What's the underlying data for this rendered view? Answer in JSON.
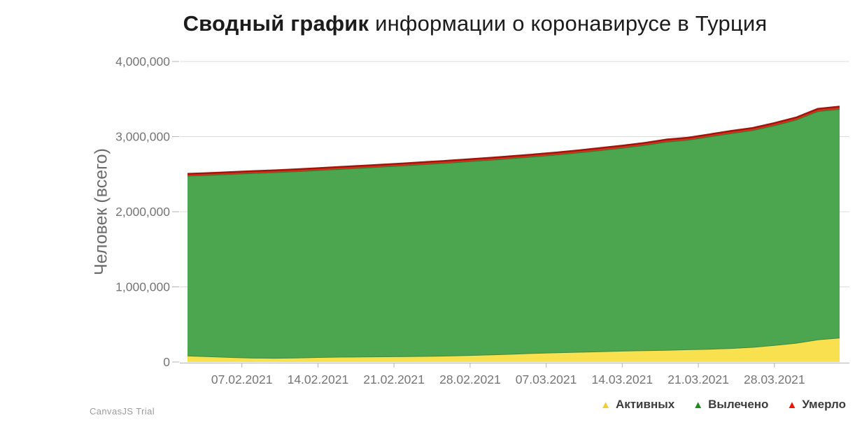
{
  "title": {
    "bold": "Сводный график",
    "rest": " информации о коронавирусе в Турция"
  },
  "watermark": "CanvasJS Trial",
  "legend": [
    {
      "label": "Активных",
      "color": "#F4CE2E"
    },
    {
      "label": "Вылечено",
      "color": "#1E8C1E"
    },
    {
      "label": "Умерло",
      "color": "#EF1507"
    }
  ],
  "colors": {
    "background": "#ffffff",
    "title_text": "#1c1c1c",
    "axis_text": "#757575",
    "axis_line": "#b5b5b5",
    "gridline": "#dcdcdc",
    "active_fill": "#F8E04E",
    "active_stroke": "#43883C",
    "recovered_fill": "#4BA64F",
    "recovered_stroke": "#2E7D32",
    "died_fill": "#D7301B",
    "died_stroke": "#9E150B"
  },
  "chart_data": {
    "type": "area",
    "stacked": true,
    "title": "Сводный график информации о коронавирусе в Турция",
    "xlabel": "",
    "ylabel": "Человек (всего)",
    "ylim": [
      0,
      4000000
    ],
    "ytick_step": 1000000,
    "grid": true,
    "legend_position": "bottom-right",
    "ytick_labels": [
      "0",
      "1,000,000",
      "2,000,000",
      "3,000,000",
      "4,000,000"
    ],
    "xtick_labels": [
      "07.02.2021",
      "14.02.2021",
      "21.02.2021",
      "28.02.2021",
      "07.03.2021",
      "14.03.2021",
      "21.03.2021",
      "28.03.2021"
    ],
    "x": [
      "02.02.2021",
      "04.02.2021",
      "06.02.2021",
      "08.02.2021",
      "10.02.2021",
      "12.02.2021",
      "14.02.2021",
      "16.02.2021",
      "18.02.2021",
      "20.02.2021",
      "22.02.2021",
      "24.02.2021",
      "26.02.2021",
      "28.02.2021",
      "02.03.2021",
      "04.03.2021",
      "06.03.2021",
      "08.03.2021",
      "10.03.2021",
      "12.03.2021",
      "14.03.2021",
      "16.03.2021",
      "18.03.2021",
      "20.03.2021",
      "22.03.2021",
      "24.03.2021",
      "26.03.2021",
      "28.03.2021",
      "30.03.2021",
      "01.04.2021",
      "03.04.2021"
    ],
    "series": [
      {
        "name": "Активных",
        "values": [
          85000,
          75000,
          65000,
          57000,
          55000,
          58000,
          65000,
          70000,
          72000,
          74000,
          76000,
          80000,
          85000,
          92000,
          100000,
          110000,
          120000,
          128000,
          135000,
          142000,
          150000,
          155000,
          160000,
          168000,
          175000,
          185000,
          200000,
          225000,
          255000,
          300000,
          325000
        ]
      },
      {
        "name": "Вылечено",
        "values": [
          2393700,
          2413500,
          2436300,
          2456100,
          2469900,
          2479700,
          2487500,
          2498300,
          2512100,
          2525900,
          2540750,
          2553600,
          2566500,
          2579400,
          2591250,
          2603100,
          2616000,
          2632850,
          2653700,
          2676600,
          2700500,
          2730300,
          2770100,
          2787000,
          2824800,
          2859600,
          2884400,
          2924200,
          2968900,
          3038500,
          3042900
        ]
      },
      {
        "name": "Умерло",
        "values": [
          26300,
          26500,
          26700,
          26900,
          27100,
          27300,
          27500,
          27700,
          27900,
          28100,
          28250,
          28400,
          28500,
          28600,
          28750,
          28900,
          29000,
          29150,
          29300,
          29400,
          29500,
          29700,
          29900,
          30000,
          30200,
          30400,
          30600,
          30800,
          31100,
          31500,
          32100
        ]
      }
    ]
  }
}
